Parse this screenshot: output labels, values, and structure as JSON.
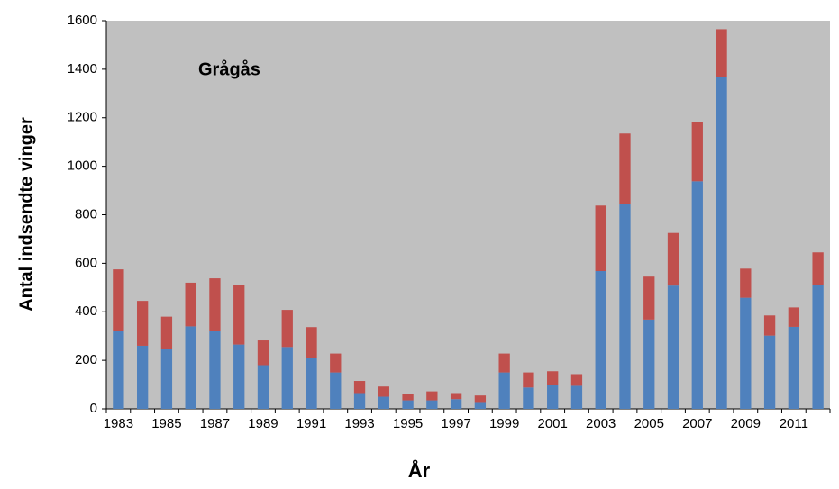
{
  "chart_data": {
    "type": "bar",
    "stacked": true,
    "annotation": "Grågås",
    "x_label": "År",
    "y_label": "Antal indsendte vinger",
    "categories": [
      "1983",
      null,
      "1985",
      null,
      "1987",
      null,
      "1989",
      null,
      "1991",
      null,
      "1993",
      null,
      "1995",
      null,
      "1997",
      null,
      "1999",
      null,
      "2001",
      null,
      "2003",
      null,
      "2005",
      null,
      "2007",
      null,
      "2009",
      null,
      "2011",
      null
    ],
    "series": [
      {
        "color": "#4f81bd",
        "values": [
          320,
          260,
          245,
          340,
          320,
          265,
          180,
          255,
          210,
          150,
          65,
          50,
          35,
          35,
          40,
          28,
          150,
          88,
          100,
          95,
          568,
          845,
          368,
          508,
          938,
          1368,
          458,
          302,
          338,
          510
        ]
      },
      {
        "color": "#c0504d",
        "values": [
          255,
          185,
          135,
          180,
          218,
          245,
          102,
          153,
          127,
          78,
          50,
          42,
          25,
          37,
          25,
          27,
          78,
          62,
          55,
          48,
          270,
          290,
          177,
          217,
          245,
          197,
          120,
          83,
          80,
          135
        ]
      }
    ],
    "ylim": [
      0,
      1600
    ],
    "yticks": [
      0,
      200,
      400,
      600,
      800,
      1000,
      1200,
      1400,
      1600
    ],
    "background": "#c0c0c0"
  }
}
